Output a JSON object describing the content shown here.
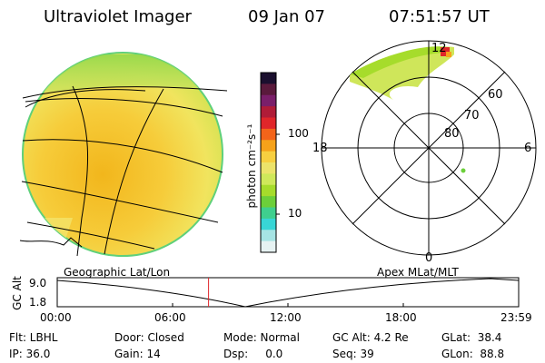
{
  "header": {
    "instrument": "Ultraviolet Imager",
    "date": "09 Jan 07",
    "time": "07:51:57 UT"
  },
  "colorbar": {
    "unit_label": "photon cm⁻²s⁻¹",
    "ticks": [
      "100",
      "10"
    ],
    "colors_top_to_bottom": [
      "#1a0f2e",
      "#5a1a3c",
      "#7a1f6a",
      "#b01c38",
      "#e0262a",
      "#f3641a",
      "#f6a21a",
      "#f7cf40",
      "#ece36a",
      "#cfe85a",
      "#a6dc2b",
      "#6ccf3a",
      "#3fcf8e",
      "#38d6d6",
      "#a6e4e4",
      "#e6f2f2"
    ]
  },
  "polar": {
    "lat_labels": [
      "80",
      "70",
      "60"
    ],
    "mlt_labels": {
      "top": "12",
      "left": "18",
      "right": "6",
      "bottom": "0"
    }
  },
  "panel_labels": {
    "left": "Geographic Lat/Lon",
    "right": "Apex MLat/MLT"
  },
  "altitude_plot": {
    "y_axis_label": "GC Alt",
    "y_ticks": [
      "9.0",
      "1.8"
    ],
    "x_ticks": [
      "00:00",
      "06:00",
      "12:00",
      "18:00",
      "23:59"
    ],
    "current_time_hours": 7.87
  },
  "status": {
    "flt": "Flt: LBHL",
    "ip": "IP: 36.0",
    "door": "Door: Closed",
    "gain": "Gain: 14",
    "mode": "Mode: Normal",
    "dsp": "Dsp:     0.0",
    "gc_alt": "GC Alt: 4.2 Re",
    "seq": "Seq: 39",
    "glat": "GLat:  38.4",
    "glon": "GLon:  88.8"
  }
}
